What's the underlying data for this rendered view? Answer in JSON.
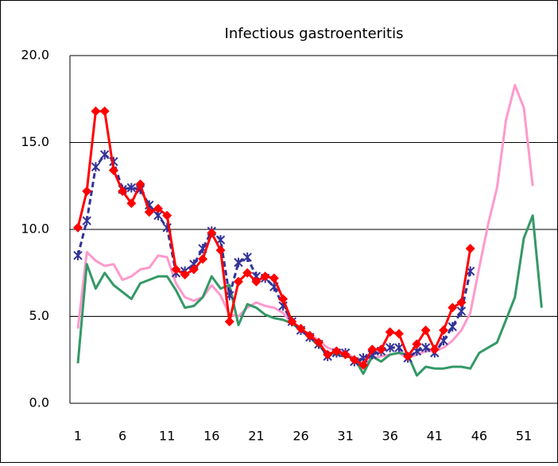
{
  "chart_data": {
    "type": "line",
    "title": "Infectious gastroenteritis",
    "categories": [
      "1",
      null,
      null,
      null,
      null,
      "6",
      null,
      null,
      null,
      null,
      "11",
      null,
      null,
      null,
      null,
      "16",
      null,
      null,
      null,
      null,
      "21",
      null,
      null,
      null,
      null,
      "26",
      null,
      null,
      null,
      null,
      "31",
      null,
      null,
      null,
      null,
      "36",
      null,
      null,
      null,
      null,
      "41",
      null,
      null,
      null,
      null,
      "46",
      null,
      null,
      null,
      null,
      "51",
      null,
      null
    ],
    "ylim": [
      0,
      20
    ],
    "yticks": [
      {
        "value": 0,
        "label": "0.0"
      },
      {
        "value": 5,
        "label": "5.0"
      },
      {
        "value": 10,
        "label": "10.0"
      },
      {
        "value": 15,
        "label": "15.0"
      },
      {
        "value": 20,
        "label": "20.0"
      }
    ],
    "grid": true,
    "series": [
      {
        "color": "#ff99cc",
        "marker": "none",
        "dash": false,
        "values": [
          4.3,
          8.7,
          8.2,
          7.9,
          8.0,
          7.1,
          7.3,
          7.7,
          7.8,
          8.5,
          8.4,
          6.9,
          6.1,
          5.9,
          6.1,
          6.8,
          6.2,
          5.1,
          5.0,
          5.5,
          5.8,
          5.6,
          5.5,
          5.2,
          4.6,
          4.2,
          4.0,
          3.6,
          3.2,
          3.0,
          2.9,
          2.6,
          2.2,
          2.6,
          2.7,
          2.8,
          2.9,
          2.6,
          2.8,
          3.0,
          3.0,
          3.2,
          3.6,
          4.2,
          5.2,
          7.8,
          10.3,
          12.4,
          16.3,
          18.3,
          17.0,
          12.5,
          null
        ]
      },
      {
        "color": "#339966",
        "marker": "none",
        "dash": false,
        "values": [
          2.3,
          8.0,
          6.6,
          7.5,
          6.8,
          6.4,
          6.0,
          6.9,
          7.1,
          7.3,
          7.3,
          6.5,
          5.5,
          5.6,
          6.1,
          7.3,
          6.6,
          6.8,
          4.5,
          5.7,
          5.5,
          5.1,
          4.9,
          4.8,
          4.6,
          4.2,
          3.8,
          3.3,
          2.9,
          2.8,
          2.7,
          2.6,
          1.7,
          2.7,
          2.4,
          2.8,
          2.9,
          2.8,
          1.6,
          2.1,
          2.0,
          2.0,
          2.1,
          2.1,
          2.0,
          2.9,
          3.2,
          3.5,
          4.8,
          6.1,
          9.5,
          10.8,
          5.5
        ]
      },
      {
        "color": "#333399",
        "marker": "asterisk",
        "dash": true,
        "values": [
          8.5,
          10.5,
          13.6,
          14.3,
          13.9,
          12.3,
          12.4,
          12.3,
          11.4,
          10.8,
          10.1,
          7.5,
          7.6,
          8.0,
          8.9,
          9.9,
          9.4,
          6.2,
          8.1,
          8.4,
          7.3,
          7.2,
          6.7,
          5.6,
          4.7,
          4.2,
          3.8,
          3.4,
          2.7,
          2.9,
          2.9,
          2.4,
          2.6,
          2.8,
          3.0,
          3.2,
          3.2,
          2.6,
          3.0,
          3.2,
          2.9,
          3.6,
          4.4,
          5.3,
          7.6,
          null,
          null,
          null,
          null,
          null,
          null,
          null,
          null
        ]
      },
      {
        "color": "#ff0000",
        "marker": "diamond",
        "dash": false,
        "values": [
          10.1,
          12.2,
          16.8,
          16.8,
          13.4,
          12.2,
          11.5,
          12.6,
          11.0,
          11.2,
          10.8,
          7.7,
          7.4,
          7.7,
          8.3,
          9.8,
          8.8,
          4.7,
          7.0,
          7.5,
          7.0,
          7.3,
          7.2,
          6.0,
          4.7,
          4.3,
          3.9,
          3.5,
          2.8,
          3.0,
          2.8,
          2.5,
          2.2,
          3.1,
          3.1,
          4.1,
          4.0,
          2.7,
          3.4,
          4.2,
          3.1,
          4.2,
          5.5,
          5.8,
          8.9,
          null,
          null,
          null,
          null,
          null,
          null,
          null,
          null
        ]
      }
    ]
  }
}
